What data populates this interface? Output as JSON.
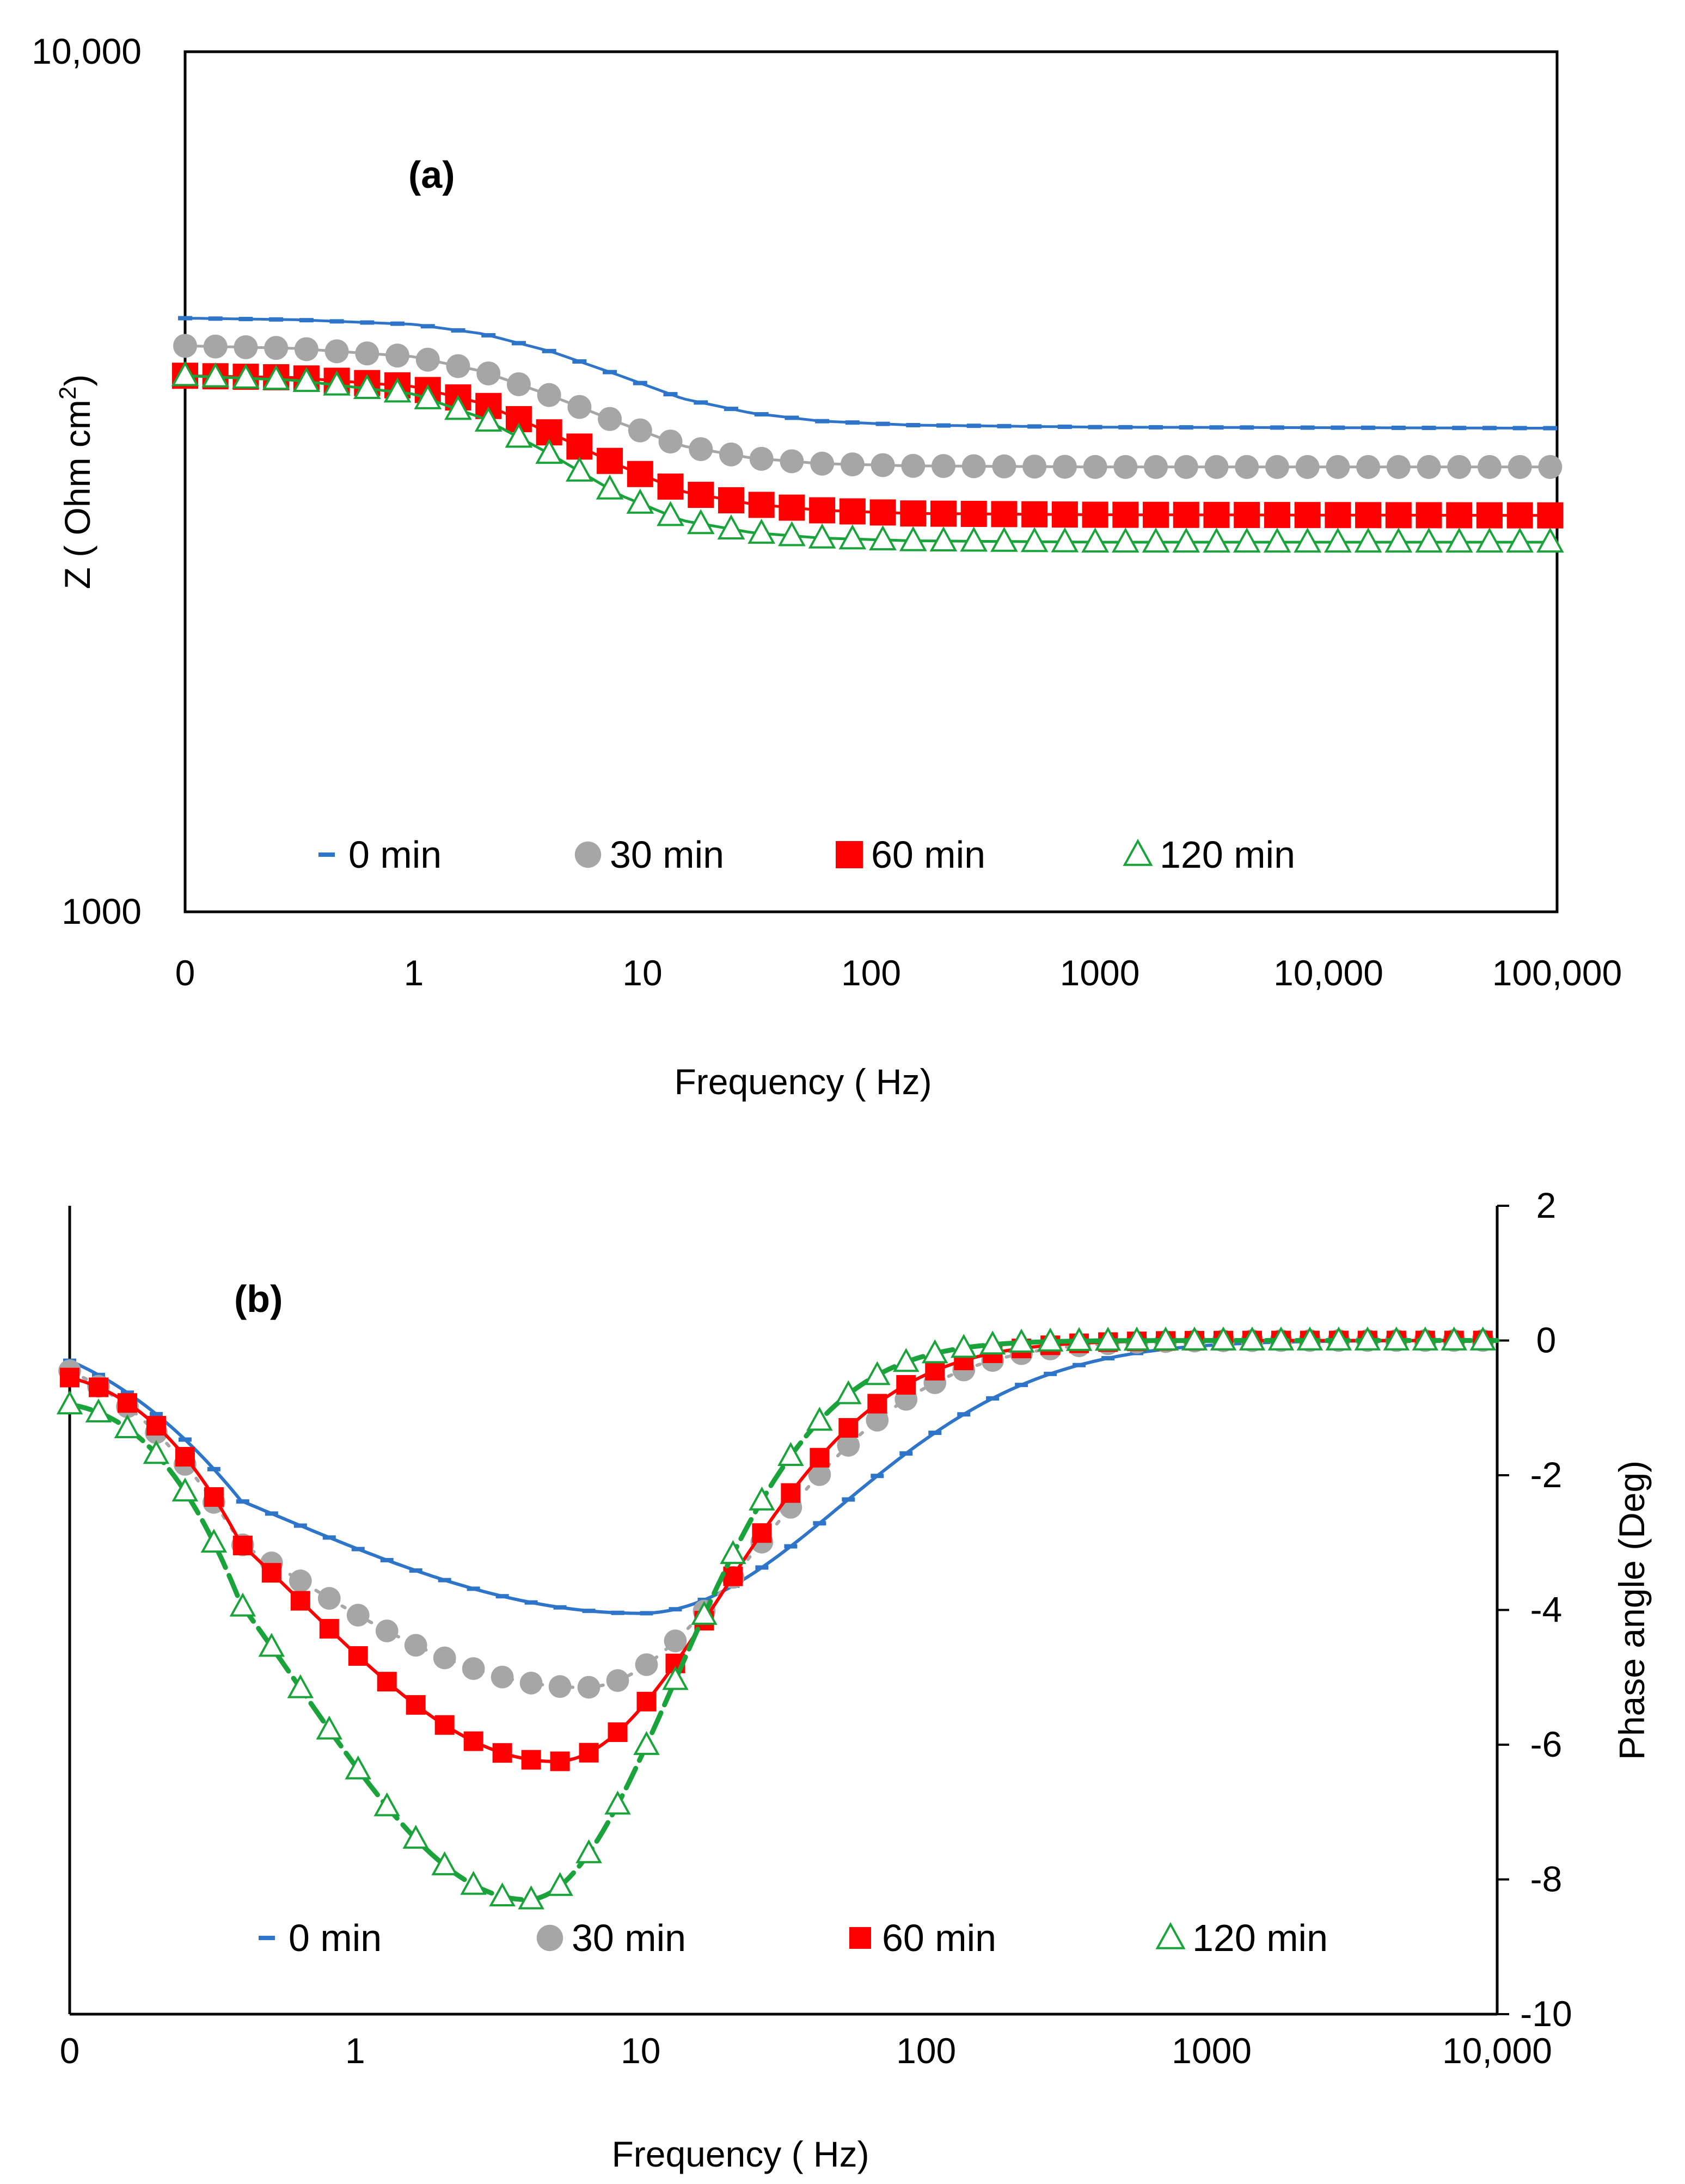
{
  "chart_data": [
    {
      "type": "line",
      "panel_label": "(a)",
      "title": "",
      "xlabel": "Frequency ( Hz)",
      "ylabel": "Z ( Ohm cm",
      "ylabel_sup": "2",
      "ylabel_close": ")",
      "xscale": "log",
      "yscale": "log",
      "xlim": [
        0.1,
        100000
      ],
      "ylim": [
        1000,
        10000
      ],
      "x_ticks": [
        {
          "value": 0.1,
          "label": "0"
        },
        {
          "value": 1,
          "label": "1"
        },
        {
          "value": 10,
          "label": "10"
        },
        {
          "value": 100,
          "label": "100"
        },
        {
          "value": 1000,
          "label": "1000"
        },
        {
          "value": 10000,
          "label": "10,000"
        },
        {
          "value": 100000,
          "label": "100,000"
        }
      ],
      "y_ticks": [
        {
          "value": 10000,
          "label": "10,000"
        },
        {
          "value": 1000,
          "label": "1000"
        }
      ],
      "legend_position": "bottom",
      "grid": false,
      "series": [
        {
          "name": "0 min",
          "marker": "dash",
          "color": "#2e75c9",
          "points": [
            [
              0.1,
              4900
            ],
            [
              0.3,
              4880
            ],
            [
              1,
              4820
            ],
            [
              2,
              4700
            ],
            [
              4,
              4480
            ],
            [
              8,
              4200
            ],
            [
              15,
              3950
            ],
            [
              30,
              3800
            ],
            [
              60,
              3720
            ],
            [
              150,
              3680
            ],
            [
              1000,
              3660
            ],
            [
              100000,
              3650
            ]
          ]
        },
        {
          "name": "30 min",
          "marker": "circle",
          "color": "#a6a6a6",
          "points": [
            [
              0.1,
              4550
            ],
            [
              0.3,
              4520
            ],
            [
              1,
              4420
            ],
            [
              2,
              4250
            ],
            [
              4,
              3980
            ],
            [
              8,
              3700
            ],
            [
              15,
              3480
            ],
            [
              30,
              3370
            ],
            [
              60,
              3320
            ],
            [
              150,
              3300
            ],
            [
              1000,
              3290
            ],
            [
              100000,
              3290
            ]
          ]
        },
        {
          "name": "60 min",
          "marker": "square",
          "color": "#ff0000",
          "points": [
            [
              0.1,
              4200
            ],
            [
              0.3,
              4180
            ],
            [
              1,
              4080
            ],
            [
              2,
              3900
            ],
            [
              4,
              3600
            ],
            [
              8,
              3300
            ],
            [
              15,
              3080
            ],
            [
              30,
              2980
            ],
            [
              60,
              2930
            ],
            [
              150,
              2905
            ],
            [
              1000,
              2895
            ],
            [
              100000,
              2890
            ]
          ]
        },
        {
          "name": "120 min",
          "marker": "triangle",
          "color": "#1aa33a",
          "points": [
            [
              0.1,
              4200
            ],
            [
              0.3,
              4150
            ],
            [
              1,
              4000
            ],
            [
              2,
              3750
            ],
            [
              4,
              3400
            ],
            [
              8,
              3050
            ],
            [
              15,
              2850
            ],
            [
              30,
              2760
            ],
            [
              60,
              2720
            ],
            [
              150,
              2700
            ],
            [
              1000,
              2690
            ],
            [
              100000,
              2690
            ]
          ]
        }
      ]
    },
    {
      "type": "line",
      "panel_label": "(b)",
      "title": "",
      "xlabel": "Frequency ( Hz)",
      "ylabel": "Phase angle (Deg)",
      "xscale": "log",
      "yscale": "linear",
      "xlim": [
        0.1,
        10000
      ],
      "ylim": [
        -10,
        2
      ],
      "x_ticks": [
        {
          "value": 0.1,
          "label": "0"
        },
        {
          "value": 1,
          "label": "1"
        },
        {
          "value": 10,
          "label": "10"
        },
        {
          "value": 100,
          "label": "100"
        },
        {
          "value": 1000,
          "label": "1000"
        },
        {
          "value": 10000,
          "label": "10,000"
        }
      ],
      "y_ticks": [
        {
          "value": 2,
          "label": "2"
        },
        {
          "value": 0,
          "label": "0"
        },
        {
          "value": -2,
          "label": "-2"
        },
        {
          "value": -4,
          "label": "-4"
        },
        {
          "value": -6,
          "label": "-6"
        },
        {
          "value": -8,
          "label": "-8"
        },
        {
          "value": -10,
          "label": "-10"
        }
      ],
      "legend_position": "bottom",
      "grid": false,
      "series": [
        {
          "name": "0 min",
          "marker": "dash",
          "color": "#2e75c9",
          "min_phase": -4.05,
          "min_freq": 10,
          "start": -0.3,
          "width": 0.7
        },
        {
          "name": "30 min",
          "marker": "circle",
          "color": "#a6a6a6",
          "min_phase": -5.15,
          "min_freq": 6.3,
          "start": -0.45,
          "width": 0.6
        },
        {
          "name": "60 min",
          "marker": "square",
          "color": "#ff0000",
          "min_phase": -6.25,
          "min_freq": 5.0,
          "start": -0.55,
          "width": 0.58
        },
        {
          "name": "120 min",
          "marker": "triangle",
          "color": "#1aa33a",
          "min_phase": -8.3,
          "min_freq": 4.0,
          "start": -0.95,
          "width": 0.52
        }
      ]
    }
  ]
}
